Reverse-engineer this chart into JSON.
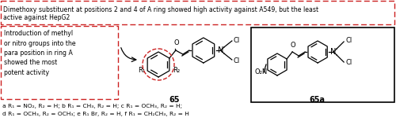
{
  "top_box_text1": "Dimethoxy substituent at positions 2 and 4 of A ring showed high activity against A549, but the least",
  "top_box_text2": "active against HepG2",
  "left_box_text": "Introduction of methyl\nor nitro groups into the\npara position in ring A\nshowed the most\npotent activity",
  "compound_label": "65",
  "compound_label2": "65a",
  "footnote_line1": "a R₁ = NO₂, R₂ = H; b R₁ = CH₃, R₂ = H; c R₁ = OCH₃, R₂ = H;",
  "footnote_line2": "d R₁ = OCH₃, R₂ = OCH₃; e R₁ Br, R₂ = H, f R₁ = CH₂CH₃, R₂ = H",
  "bg_color": "#ffffff",
  "box_edge_color": "#cc2222",
  "text_color": "#000000",
  "fig_width": 5.0,
  "fig_height": 1.59,
  "dpi": 100
}
